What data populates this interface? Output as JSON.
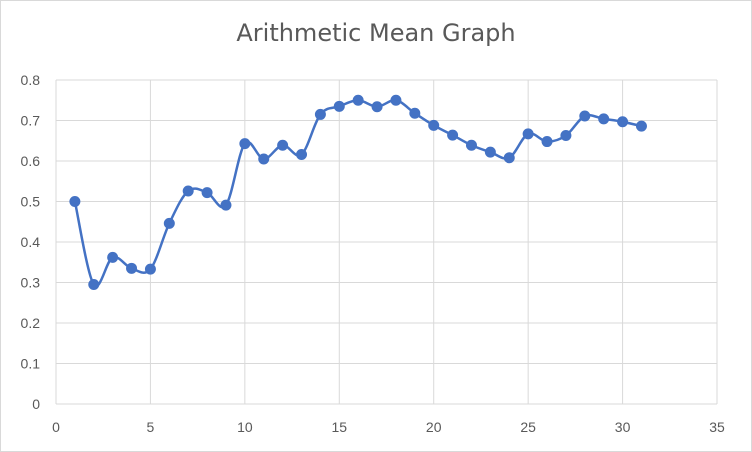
{
  "chart_data": {
    "type": "line",
    "title": "Arithmetic Mean Graph",
    "xlabel": "",
    "ylabel": "",
    "xlim": [
      0,
      35
    ],
    "ylim": [
      0,
      0.8
    ],
    "x_ticks": [
      0,
      5,
      10,
      15,
      20,
      25,
      30,
      35
    ],
    "y_ticks": [
      0,
      0.1,
      0.2,
      0.3,
      0.4,
      0.5,
      0.6,
      0.7,
      0.8
    ],
    "grid": true,
    "smoothed": true,
    "legend": "none",
    "series": [
      {
        "color": "#4472c4",
        "x": [
          1,
          2,
          3,
          4,
          5,
          6,
          7,
          8,
          9,
          10,
          11,
          12,
          13,
          14,
          15,
          16,
          17,
          18,
          19,
          20,
          21,
          22,
          23,
          24,
          25,
          26,
          27,
          28,
          29,
          30,
          31
        ],
        "y": [
          0.5,
          0.295,
          0.362,
          0.335,
          0.333,
          0.446,
          0.526,
          0.522,
          0.491,
          0.643,
          0.605,
          0.639,
          0.616,
          0.715,
          0.735,
          0.75,
          0.734,
          0.75,
          0.718,
          0.688,
          0.664,
          0.639,
          0.622,
          0.608,
          0.667,
          0.648,
          0.663,
          0.711,
          0.704,
          0.697,
          0.686
        ]
      }
    ]
  },
  "colors": {
    "gridline": "#d9d9d9",
    "axis_text": "#595959",
    "series": "#4472c4"
  }
}
